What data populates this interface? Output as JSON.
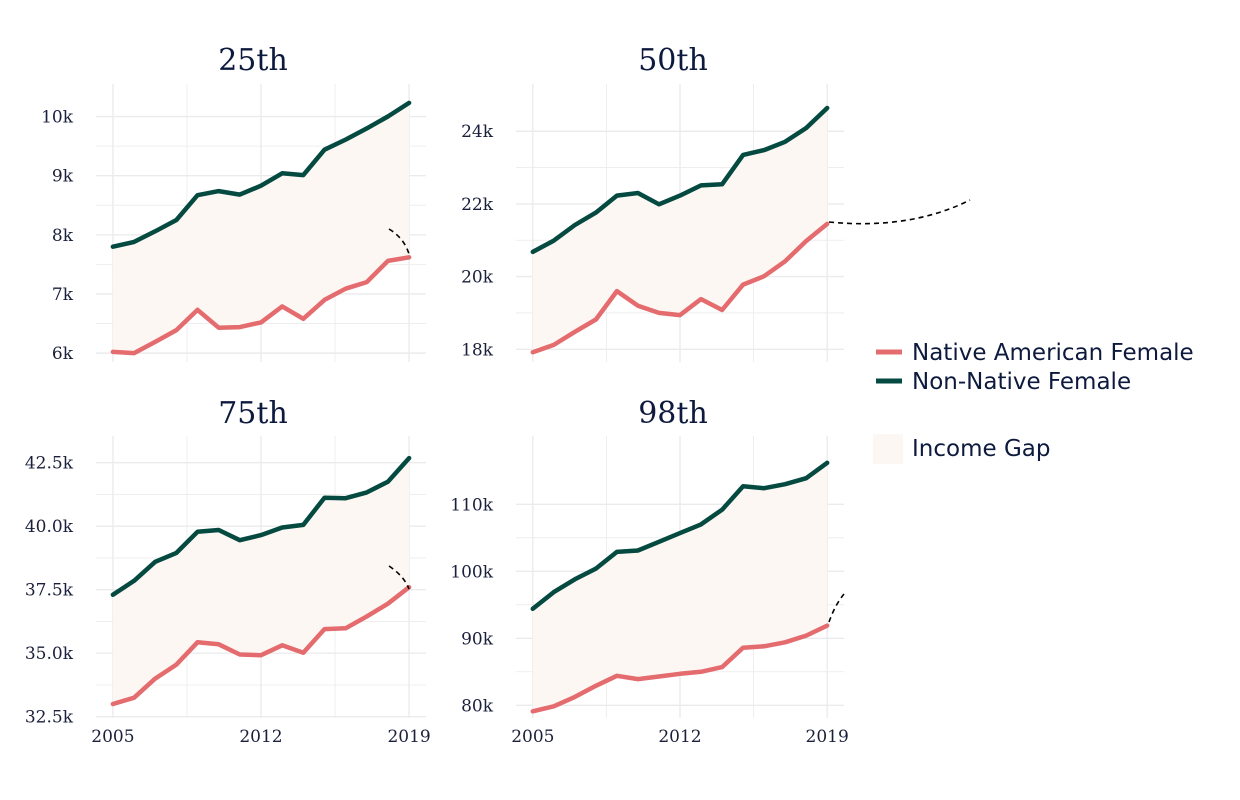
{
  "colors": {
    "native": "#e46c6f",
    "non_native": "#054a40",
    "gap_fill": "#fdf7f3",
    "grid": "#ebebeb",
    "text": "#0d1a3d",
    "annotation": "#000000"
  },
  "legend": {
    "native_label": "Native American Female",
    "non_native_label": "Non-Native Female",
    "gap_label": "Income Gap"
  },
  "chart_data": [
    {
      "type": "line",
      "title": "25th",
      "x": [
        2005,
        2006,
        2007,
        2008,
        2009,
        2010,
        2011,
        2012,
        2013,
        2014,
        2015,
        2016,
        2017,
        2018,
        2019
      ],
      "ylim": [
        5850,
        10550
      ],
      "yticks": [
        6000,
        7000,
        8000,
        9000,
        10000
      ],
      "ytick_labels": [
        "6k",
        "7k",
        "8k",
        "9k",
        "10k"
      ],
      "xtick_labels": [],
      "series": [
        {
          "name": "Native American Female",
          "values": [
            6020,
            6000,
            6190,
            6390,
            6730,
            6430,
            6440,
            6520,
            6790,
            6580,
            6900,
            7090,
            7200,
            7560,
            7620
          ]
        },
        {
          "name": "Non-Native Female",
          "values": [
            7800,
            7880,
            8060,
            8250,
            8670,
            8740,
            8680,
            8830,
            9040,
            9010,
            9440,
            9610,
            9800,
            10000,
            10230
          ]
        }
      ]
    },
    {
      "type": "line",
      "title": "50th",
      "x": [
        2005,
        2006,
        2007,
        2008,
        2009,
        2010,
        2011,
        2012,
        2013,
        2014,
        2015,
        2016,
        2017,
        2018,
        2019
      ],
      "ylim": [
        17650,
        25300
      ],
      "yticks": [
        18000,
        20000,
        22000,
        24000
      ],
      "ytick_labels": [
        "18k",
        "20k",
        "22k",
        "24k"
      ],
      "xtick_labels": [],
      "series": [
        {
          "name": "Native American Female",
          "values": [
            17920,
            18120,
            18480,
            18820,
            19600,
            19200,
            19000,
            18940,
            19380,
            19080,
            19780,
            20010,
            20420,
            20980,
            21450
          ]
        },
        {
          "name": "Non-Native Female",
          "values": [
            20680,
            20990,
            21420,
            21760,
            22230,
            22300,
            21990,
            22230,
            22510,
            22540,
            23350,
            23480,
            23710,
            24090,
            24640
          ]
        }
      ]
    },
    {
      "type": "line",
      "title": "75th",
      "x": [
        2005,
        2006,
        2007,
        2008,
        2009,
        2010,
        2011,
        2012,
        2013,
        2014,
        2015,
        2016,
        2017,
        2018,
        2019
      ],
      "ylim": [
        32450,
        43550
      ],
      "yticks": [
        32500,
        35000,
        37500,
        40000,
        42500
      ],
      "ytick_labels": [
        "32.5k",
        "35.0k",
        "37.5k",
        "40.0k",
        "42.5k"
      ],
      "xtick_labels": [
        "2005",
        "2012",
        "2019"
      ],
      "series": [
        {
          "name": "Native American Female",
          "values": [
            33000,
            33250,
            34000,
            34550,
            35430,
            35350,
            34950,
            34920,
            35310,
            35020,
            35950,
            35980,
            36450,
            36950,
            37600
          ]
        },
        {
          "name": "Non-Native Female",
          "values": [
            37300,
            37850,
            38600,
            38950,
            39780,
            39850,
            39450,
            39650,
            39950,
            40050,
            41120,
            41100,
            41330,
            41750,
            42680
          ]
        }
      ]
    },
    {
      "type": "line",
      "title": "98th",
      "x": [
        2005,
        2006,
        2007,
        2008,
        2009,
        2010,
        2011,
        2012,
        2013,
        2014,
        2015,
        2016,
        2017,
        2018,
        2019
      ],
      "ylim": [
        78100,
        120200
      ],
      "yticks": [
        80000,
        90000,
        100000,
        110000
      ],
      "ytick_labels": [
        "80k",
        "90k",
        "100k",
        "110k"
      ],
      "xtick_labels": [
        "2005",
        "2012",
        "2019"
      ],
      "series": [
        {
          "name": "Native American Female",
          "values": [
            79100,
            79850,
            81250,
            82900,
            84400,
            83900,
            84300,
            84700,
            85000,
            85700,
            88600,
            88800,
            89400,
            90400,
            91900
          ]
        },
        {
          "name": "Non-Native Female",
          "values": [
            94400,
            96900,
            98800,
            100400,
            102900,
            103100,
            104400,
            105700,
            107000,
            109200,
            112700,
            112400,
            113000,
            113900,
            116200
          ]
        }
      ]
    }
  ]
}
